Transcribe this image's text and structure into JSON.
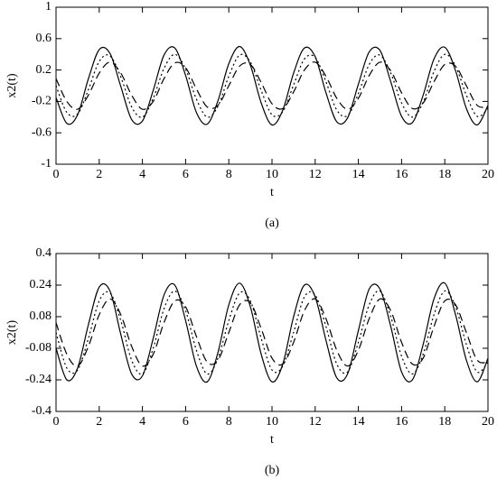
{
  "chart_data": [
    {
      "type": "line",
      "caption": "(a)",
      "xlabel": "t",
      "ylabel": "x2(t)",
      "x": [
        0,
        0.5,
        1,
        1.5,
        2,
        2.5,
        3,
        3.5,
        4,
        4.5,
        5,
        5.5,
        6,
        6.5,
        7,
        7.5,
        8,
        8.5,
        9,
        9.5,
        10,
        10.5,
        11,
        11.5,
        12,
        12.5,
        13,
        13.5,
        14,
        14.5,
        15,
        15.5,
        16,
        16.5,
        17,
        17.5,
        18,
        18.5,
        19,
        19.5,
        20
      ],
      "series": [
        {
          "color": "#000000",
          "style": "solid",
          "values": [
            -0.15,
            -0.48,
            -0.37,
            0.09,
            0.46,
            0.41,
            -0.01,
            -0.43,
            -0.45,
            -0.06,
            0.39,
            0.48,
            0.13,
            -0.34,
            -0.49,
            -0.19,
            0.28,
            0.5,
            0.26,
            -0.22,
            -0.5,
            -0.31,
            0.16,
            0.48,
            0.37,
            -0.09,
            -0.46,
            -0.41,
            0.02,
            0.43,
            0.45,
            0.05,
            -0.39,
            -0.47,
            -0.12,
            0.34,
            0.49,
            0.19,
            -0.29,
            -0.5,
            -0.25
          ]
        },
        {
          "color": "#000000",
          "style": "dotted",
          "values": [
            0,
            -0.34,
            -0.36,
            -0.05,
            0.31,
            0.38,
            0.11,
            -0.27,
            -0.4,
            -0.16,
            0.22,
            0.4,
            0.21,
            -0.17,
            -0.4,
            -0.26,
            0.12,
            0.39,
            0.3,
            -0.06,
            -0.37,
            -0.33,
            0.01,
            0.34,
            0.36,
            0.05,
            -0.31,
            -0.38,
            -0.1,
            0.27,
            0.39,
            0.16,
            -0.22,
            -0.4,
            -0.21,
            0.18,
            0.4,
            0.25,
            -0.12,
            -0.39,
            -0.29
          ]
        },
        {
          "color": "#000000",
          "style": "dashed",
          "values": [
            0.09,
            -0.2,
            -0.3,
            -0.12,
            0.16,
            0.3,
            0.16,
            -0.12,
            -0.3,
            -0.2,
            0.09,
            0.29,
            0.23,
            -0.04,
            -0.27,
            -0.25,
            0,
            0.25,
            0.27,
            0.04,
            -0.23,
            -0.29,
            -0.08,
            0.2,
            0.3,
            0.12,
            -0.16,
            -0.3,
            -0.16,
            0.13,
            0.3,
            0.19,
            -0.09,
            -0.29,
            -0.22,
            0.05,
            0.27,
            0.25,
            0,
            -0.25,
            -0.27
          ]
        }
      ],
      "xlim": [
        0,
        20
      ],
      "xticks": [
        0,
        2,
        4,
        6,
        8,
        10,
        12,
        14,
        16,
        18,
        20
      ],
      "ylim": [
        -1,
        1
      ],
      "yticks": [
        -1,
        -0.6,
        -0.2,
        0.2,
        0.6,
        1
      ]
    },
    {
      "type": "line",
      "caption": "(b)",
      "xlabel": "t",
      "ylabel": "x2(t)",
      "x": [
        0,
        0.5,
        1,
        1.5,
        2,
        2.5,
        3,
        3.5,
        4,
        4.5,
        5,
        5.5,
        6,
        6.5,
        7,
        7.5,
        8,
        8.5,
        9,
        9.5,
        10,
        10.5,
        11,
        11.5,
        12,
        12.5,
        13,
        13.5,
        14,
        14.5,
        15,
        15.5,
        16,
        16.5,
        17,
        17.5,
        18,
        18.5,
        19,
        19.5,
        20
      ],
      "series": [
        {
          "color": "#000000",
          "style": "solid",
          "values": [
            -0.08,
            -0.24,
            -0.18,
            0.04,
            0.23,
            0.21,
            -0.01,
            -0.21,
            -0.22,
            -0.03,
            0.19,
            0.24,
            0.06,
            -0.17,
            -0.25,
            -0.1,
            0.14,
            0.25,
            0.13,
            -0.11,
            -0.25,
            -0.16,
            0.08,
            0.24,
            0.18,
            -0.04,
            -0.23,
            -0.21,
            0.01,
            0.22,
            0.22,
            0.03,
            -0.2,
            -0.24,
            -0.06,
            0.17,
            0.25,
            0.09,
            -0.14,
            -0.25,
            -0.13
          ]
        },
        {
          "color": "#000000",
          "style": "dotted",
          "values": [
            0,
            -0.18,
            -0.19,
            -0.03,
            0.16,
            0.2,
            0.06,
            -0.14,
            -0.21,
            -0.08,
            0.12,
            0.21,
            0.11,
            -0.09,
            -0.21,
            -0.13,
            0.06,
            0.2,
            0.16,
            -0.03,
            -0.19,
            -0.17,
            0,
            0.18,
            0.19,
            0.03,
            -0.16,
            -0.2,
            -0.05,
            0.14,
            0.21,
            0.08,
            -0.12,
            -0.21,
            -0.11,
            0.09,
            0.21,
            0.13,
            -0.06,
            -0.2,
            -0.15
          ]
        },
        {
          "color": "#000000",
          "style": "dashed",
          "values": [
            0.05,
            -0.11,
            -0.17,
            -0.07,
            0.09,
            0.17,
            0.09,
            -0.07,
            -0.17,
            -0.11,
            0.05,
            0.16,
            0.13,
            -0.02,
            -0.15,
            -0.14,
            0,
            0.14,
            0.15,
            0.02,
            -0.13,
            -0.16,
            -0.05,
            0.11,
            0.17,
            0.07,
            -0.09,
            -0.17,
            -0.09,
            0.07,
            0.17,
            0.11,
            -0.05,
            -0.16,
            -0.13,
            0.03,
            0.16,
            0.14,
            0,
            -0.14,
            -0.15
          ]
        }
      ],
      "xlim": [
        0,
        20
      ],
      "xticks": [
        0,
        2,
        4,
        6,
        8,
        10,
        12,
        14,
        16,
        18,
        20
      ],
      "ylim": [
        -0.4,
        0.4
      ],
      "yticks": [
        -0.4,
        -0.24,
        -0.08,
        0.08,
        0.24,
        0.4
      ]
    }
  ]
}
